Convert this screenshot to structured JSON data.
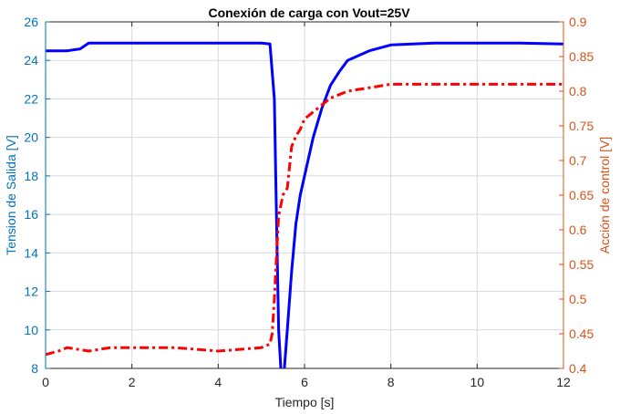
{
  "chart_data": {
    "type": "line",
    "title": "Conexión de carga con Vout=25V",
    "xlabel": "Tiempo [s]",
    "ylabel_left": "Tension de Salida [V]",
    "ylabel_right": "Acción de control [V]",
    "xlim": [
      0,
      12
    ],
    "ylim_left": [
      8,
      26
    ],
    "ylim_right": [
      0.4,
      0.9
    ],
    "x_ticks": [
      "0",
      "2",
      "4",
      "6",
      "8",
      "10",
      "12"
    ],
    "y_left_ticks": [
      "8",
      "10",
      "12",
      "14",
      "16",
      "18",
      "20",
      "22",
      "24",
      "26"
    ],
    "y_right_ticks": [
      "0.4",
      "0.45",
      "0.5",
      "0.55",
      "0.6",
      "0.65",
      "0.7",
      "0.75",
      "0.8",
      "0.85",
      "0.9"
    ],
    "grid": true,
    "colors": {
      "left_axis": "#0072BD",
      "right_axis": "#D95319",
      "series_voltage": "#0000FF",
      "series_control": "#FF0000",
      "grid": "#D9D9D9"
    },
    "series": [
      {
        "axis": "left",
        "style": "solid",
        "x": [
          0,
          0.5,
          0.8,
          1.0,
          1.5,
          2,
          3,
          4,
          5,
          5.2,
          5.3,
          5.35,
          5.4,
          5.45,
          5.5,
          5.6,
          5.7,
          5.8,
          5.9,
          6.0,
          6.2,
          6.4,
          6.6,
          6.8,
          7.0,
          7.5,
          8,
          9,
          10,
          11,
          12
        ],
        "y": [
          24.5,
          24.5,
          24.6,
          24.9,
          24.9,
          24.9,
          24.9,
          24.9,
          24.9,
          24.85,
          22,
          16,
          10,
          8,
          7,
          10,
          13,
          15.5,
          17,
          18,
          20,
          21.5,
          22.7,
          23.4,
          24,
          24.5,
          24.8,
          24.9,
          24.9,
          24.9,
          24.85
        ]
      },
      {
        "axis": "right",
        "style": "dashdot",
        "x": [
          0,
          0.3,
          0.5,
          1,
          1.5,
          2,
          3,
          4,
          5,
          5.2,
          5.25,
          5.3,
          5.35,
          5.4,
          5.5,
          5.6,
          5.7,
          5.8,
          5.9,
          6.0,
          6.2,
          6.4,
          6.6,
          6.8,
          7.0,
          7.5,
          8,
          9,
          10,
          11,
          12
        ],
        "y": [
          0.42,
          0.425,
          0.43,
          0.425,
          0.43,
          0.43,
          0.43,
          0.425,
          0.43,
          0.435,
          0.45,
          0.5,
          0.56,
          0.62,
          0.65,
          0.66,
          0.72,
          0.735,
          0.745,
          0.76,
          0.77,
          0.78,
          0.79,
          0.795,
          0.8,
          0.805,
          0.81,
          0.81,
          0.81,
          0.81,
          0.81
        ]
      }
    ]
  }
}
